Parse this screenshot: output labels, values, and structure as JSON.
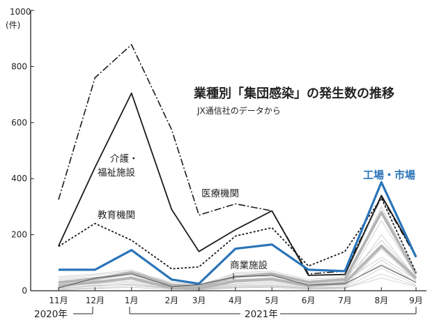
{
  "chart_data": {
    "type": "line",
    "title": "業種別「集団感染」の発生数の推移",
    "subtitle": "JX通信社のデータから",
    "y_unit_value": "1000",
    "y_unit_label": "(件)",
    "ylim": [
      0,
      1000
    ],
    "yticks": [
      0,
      200,
      400,
      600,
      800
    ],
    "categories": [
      "11月",
      "12月",
      "1月",
      "2月",
      "3月",
      "4月",
      "5月",
      "6月",
      "7月",
      "8月",
      "9月"
    ],
    "x": [
      0,
      1,
      2,
      3.1,
      3.85,
      4.85,
      5.85,
      6.85,
      7.85,
      8.85,
      9.8
    ],
    "year_labels": [
      "2020年",
      "2021年"
    ],
    "colors": {
      "highlight": "#2a74b8",
      "other": "#c8c8c8",
      "main": "#1a1a1a"
    },
    "series": [
      {
        "name": "医療機関",
        "label": "医療機関",
        "style": "dashdot",
        "values": [
          325,
          760,
          878,
          575,
          270,
          310,
          285,
          60,
          70,
          335,
          120
        ]
      },
      {
        "name": "介護・福祉施設",
        "label": [
          "介護・",
          "福祉施設"
        ],
        "style": "solid",
        "values": [
          160,
          440,
          705,
          290,
          140,
          218,
          285,
          55,
          58,
          340,
          125
        ]
      },
      {
        "name": "教育機関",
        "label": "教育機関",
        "style": "dotted",
        "values": [
          158,
          240,
          180,
          78,
          85,
          195,
          225,
          88,
          140,
          330,
          65
        ]
      },
      {
        "name": "工場・市場",
        "label": "工場・市場",
        "style": "highlight",
        "values": [
          75,
          75,
          145,
          40,
          25,
          150,
          165,
          75,
          70,
          387,
          120
        ]
      },
      {
        "name": "商業施設",
        "label": "商業施設",
        "style": "thin",
        "values": [
          10,
          45,
          60,
          15,
          22,
          50,
          55,
          20,
          25,
          90,
          30
        ]
      }
    ],
    "other_series": [
      [
        30,
        40,
        55,
        25,
        20,
        40,
        45,
        25,
        30,
        300,
        60
      ],
      [
        20,
        30,
        50,
        20,
        15,
        35,
        40,
        20,
        25,
        250,
        55
      ],
      [
        15,
        25,
        35,
        15,
        10,
        25,
        30,
        15,
        20,
        200,
        45
      ],
      [
        10,
        20,
        30,
        12,
        8,
        22,
        25,
        12,
        15,
        150,
        35
      ],
      [
        8,
        15,
        25,
        10,
        6,
        18,
        20,
        10,
        12,
        110,
        28
      ],
      [
        5,
        10,
        18,
        8,
        5,
        12,
        15,
        8,
        10,
        80,
        22
      ],
      [
        3,
        8,
        12,
        5,
        3,
        10,
        12,
        5,
        8,
        60,
        18
      ],
      [
        40,
        48,
        60,
        20,
        12,
        55,
        50,
        30,
        35,
        120,
        40
      ],
      [
        45,
        55,
        70,
        30,
        22,
        60,
        65,
        35,
        45,
        180,
        50
      ],
      [
        25,
        35,
        42,
        18,
        12,
        30,
        35,
        18,
        22,
        95,
        30
      ],
      [
        12,
        18,
        22,
        8,
        6,
        15,
        18,
        8,
        10,
        45,
        15
      ],
      [
        50,
        60,
        75,
        25,
        15,
        65,
        70,
        40,
        50,
        330,
        65
      ]
    ],
    "other_series_bold": [
      [
        30,
        42,
        65,
        20,
        15,
        50,
        60,
        30,
        40,
        280,
        60
      ],
      [
        18,
        30,
        45,
        10,
        8,
        35,
        42,
        18,
        28,
        160,
        45
      ]
    ],
    "grid": false
  }
}
